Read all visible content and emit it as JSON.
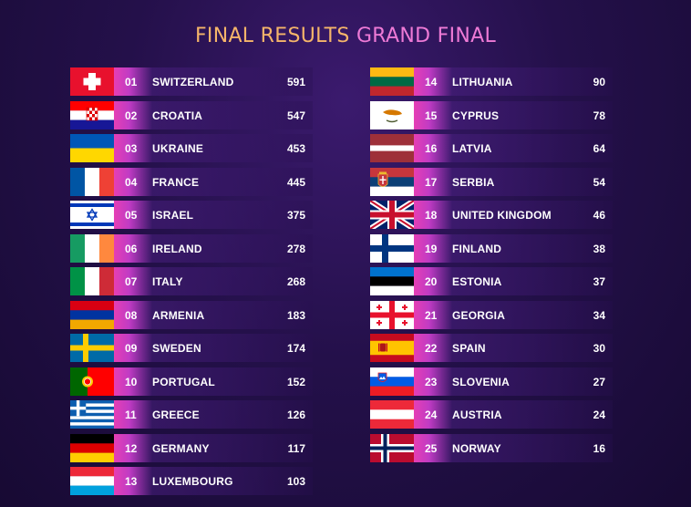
{
  "title": {
    "part1": "FINAL RESULTS",
    "part2": "GRAND FINAL"
  },
  "results": [
    {
      "position": "01",
      "country": "SWITZERLAND",
      "points": "591",
      "flag": "switzerland-flag-icon"
    },
    {
      "position": "02",
      "country": "CROATIA",
      "points": "547",
      "flag": "croatia-flag-icon"
    },
    {
      "position": "03",
      "country": "UKRAINE",
      "points": "453",
      "flag": "ukraine-flag-icon"
    },
    {
      "position": "04",
      "country": "FRANCE",
      "points": "445",
      "flag": "france-flag-icon"
    },
    {
      "position": "05",
      "country": "ISRAEL",
      "points": "375",
      "flag": "israel-flag-icon"
    },
    {
      "position": "06",
      "country": "IRELAND",
      "points": "278",
      "flag": "ireland-flag-icon"
    },
    {
      "position": "07",
      "country": "ITALY",
      "points": "268",
      "flag": "italy-flag-icon"
    },
    {
      "position": "08",
      "country": "ARMENIA",
      "points": "183",
      "flag": "armenia-flag-icon"
    },
    {
      "position": "09",
      "country": "SWEDEN",
      "points": "174",
      "flag": "sweden-flag-icon"
    },
    {
      "position": "10",
      "country": "PORTUGAL",
      "points": "152",
      "flag": "portugal-flag-icon"
    },
    {
      "position": "11",
      "country": "GREECE",
      "points": "126",
      "flag": "greece-flag-icon"
    },
    {
      "position": "12",
      "country": "GERMANY",
      "points": "117",
      "flag": "germany-flag-icon"
    },
    {
      "position": "13",
      "country": "LUXEMBOURG",
      "points": "103",
      "flag": "luxembourg-flag-icon"
    },
    {
      "position": "14",
      "country": "LITHUANIA",
      "points": "90",
      "flag": "lithuania-flag-icon"
    },
    {
      "position": "15",
      "country": "CYPRUS",
      "points": "78",
      "flag": "cyprus-flag-icon"
    },
    {
      "position": "16",
      "country": "LATVIA",
      "points": "64",
      "flag": "latvia-flag-icon"
    },
    {
      "position": "17",
      "country": "SERBIA",
      "points": "54",
      "flag": "serbia-flag-icon"
    },
    {
      "position": "18",
      "country": "UNITED KINGDOM",
      "points": "46",
      "flag": "uk-flag-icon"
    },
    {
      "position": "19",
      "country": "FINLAND",
      "points": "38",
      "flag": "finland-flag-icon"
    },
    {
      "position": "20",
      "country": "ESTONIA",
      "points": "37",
      "flag": "estonia-flag-icon"
    },
    {
      "position": "21",
      "country": "GEORGIA",
      "points": "34",
      "flag": "georgia-flag-icon"
    },
    {
      "position": "22",
      "country": "SPAIN",
      "points": "30",
      "flag": "spain-flag-icon"
    },
    {
      "position": "23",
      "country": "SLOVENIA",
      "points": "27",
      "flag": "slovenia-flag-icon"
    },
    {
      "position": "24",
      "country": "AUSTRIA",
      "points": "24",
      "flag": "austria-flag-icon"
    },
    {
      "position": "25",
      "country": "NORWAY",
      "points": "16",
      "flag": "norway-flag-icon"
    }
  ]
}
